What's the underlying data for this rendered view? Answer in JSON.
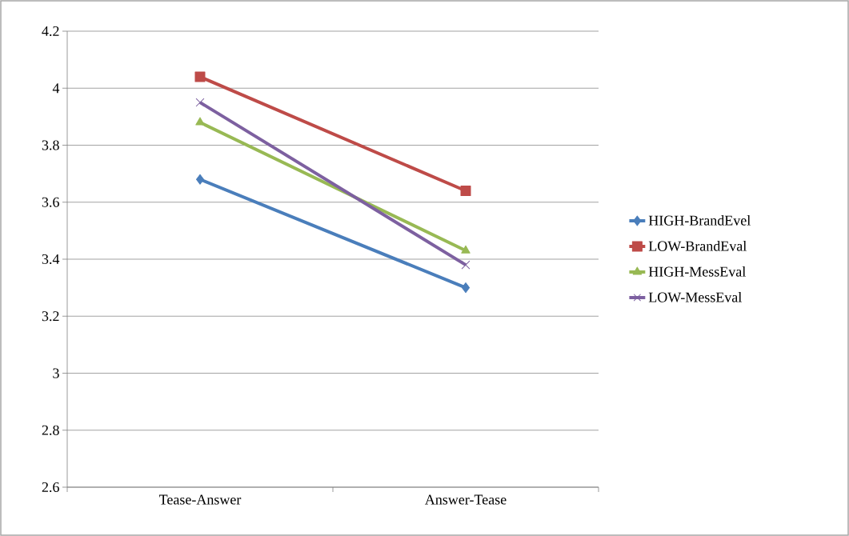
{
  "chart_data": {
    "type": "line",
    "categories": [
      "Tease-Answer",
      "Answer-Tease"
    ],
    "series": [
      {
        "name": "HIGH-BrandEvel",
        "color": "#4a7ebb",
        "marker": "diamond",
        "values": [
          3.68,
          3.3
        ]
      },
      {
        "name": "LOW-BrandEval",
        "color": "#be4b48",
        "marker": "square",
        "values": [
          4.04,
          3.64
        ]
      },
      {
        "name": "HIGH-MessEval",
        "color": "#98b954",
        "marker": "triangle",
        "values": [
          3.88,
          3.43
        ]
      },
      {
        "name": "LOW-MessEval",
        "color": "#7d60a0",
        "marker": "cross",
        "values": [
          3.95,
          3.38
        ]
      }
    ],
    "ylim": [
      2.6,
      4.2
    ],
    "yticks": [
      2.6,
      2.8,
      3,
      3.2,
      3.4,
      3.6,
      3.8,
      4,
      4.2
    ],
    "grid": "y",
    "legend": "right",
    "line_style": "solid"
  }
}
